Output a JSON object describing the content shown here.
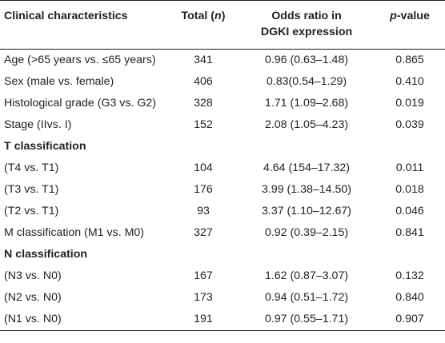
{
  "header": {
    "characteristics": "Clinical characteristics",
    "total_prefix": "Total (",
    "total_n": "n",
    "total_suffix": ")",
    "odds_line1": "Odds ratio in",
    "odds_line2": "DGKI expression",
    "p_prefix": "p",
    "p_suffix": "-value"
  },
  "rows": [
    {
      "label": "Age (>65 years vs. ≤65 years)",
      "total": "341",
      "odds": "0.96 (0.63–1.48)",
      "p": "0.865"
    },
    {
      "label": "Sex (male vs. female)",
      "total": "406",
      "odds": "0.83(0.54–1.29)",
      "p": "0.410"
    },
    {
      "label": "Histological grade (G3 vs. G2)",
      "total": "328",
      "odds": "1.71 (1.09–2.68)",
      "p": "0.019"
    },
    {
      "label": "Stage (IIvs. I)",
      "total": "152",
      "odds": "2.08 (1.05–4.23)",
      "p": "0.039"
    },
    {
      "label": "T classification"
    },
    {
      "label": "(T4 vs. T1)",
      "total": "104",
      "odds": "4.64 (154–17.32)",
      "p": "0.011"
    },
    {
      "label": "(T3 vs. T1)",
      "total": "176",
      "odds": "3.99 (1.38–14.50)",
      "p": "0.018"
    },
    {
      "label": "(T2 vs. T1)",
      "total": "93",
      "odds": "3.37 (1.10–12.67)",
      "p": "0.046"
    },
    {
      "label": "M classification (M1 vs. M0)",
      "total": "327",
      "odds": "0.92 (0.39–2.15)",
      "p": "0.841"
    },
    {
      "label": "N classification"
    },
    {
      "label": "(N3 vs. N0)",
      "total": "167",
      "odds": "1.62 (0.87–3.07)",
      "p": "0.132"
    },
    {
      "label": "(N2 vs. N0)",
      "total": "173",
      "odds": "0.94 (0.51–1.72)",
      "p": "0.840"
    },
    {
      "label": "(N1 vs. N0)",
      "total": "191",
      "odds": "0.97 (0.55–1.71)",
      "p": "0.907"
    }
  ]
}
